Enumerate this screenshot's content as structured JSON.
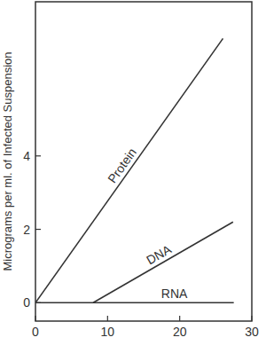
{
  "chart_data": {
    "type": "line",
    "ylabel": "Micrograms per ml. of Infected Suspension",
    "series": [
      {
        "name": "Protein",
        "color": "#333333",
        "x": [
          0,
          26
        ],
        "values": [
          0,
          7.2
        ]
      },
      {
        "name": "DNA",
        "color": "#333333",
        "x": [
          8,
          27.4
        ],
        "values": [
          0,
          2.2
        ]
      },
      {
        "name": "RNA",
        "color": "#333333",
        "x": [
          0,
          27.5
        ],
        "values": [
          0,
          0
        ]
      }
    ],
    "xlim": [
      0,
      30
    ],
    "xticks": [
      0,
      10,
      20,
      30
    ],
    "ylim": [
      -0.5,
      8.2
    ],
    "yticks": [
      0,
      2,
      4
    ],
    "grid": false
  }
}
